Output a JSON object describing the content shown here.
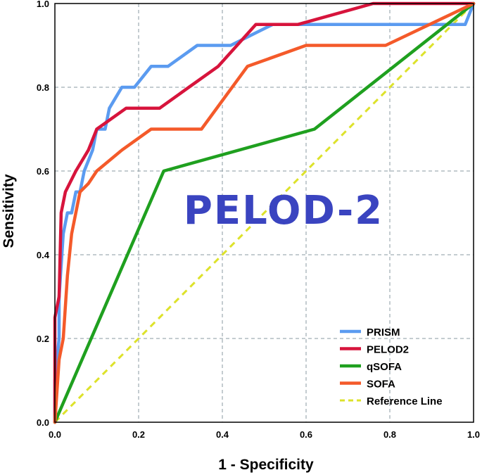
{
  "overlay_text": "PELOD-2",
  "chart_data": {
    "type": "line",
    "title": "",
    "xlabel": "1 - Specificity",
    "ylabel": "Sensitivity",
    "xlim": [
      0,
      1
    ],
    "ylim": [
      0,
      1
    ],
    "grid": true,
    "legend_position": "bottom-right",
    "x_ticks": [
      "0.0",
      "0.2",
      "0.4",
      "0.6",
      "0.8",
      "1.0"
    ],
    "y_ticks": [
      "0.0",
      "0.2",
      "0.4",
      "0.6",
      "0.8",
      "1.0"
    ],
    "series": [
      {
        "name": "PRISM",
        "color": "#5b9bf0",
        "dashed": false,
        "points": [
          [
            0,
            0
          ],
          [
            0,
            0.1
          ],
          [
            0.01,
            0.2
          ],
          [
            0.01,
            0.3
          ],
          [
            0.02,
            0.45
          ],
          [
            0.03,
            0.5
          ],
          [
            0.04,
            0.5
          ],
          [
            0.05,
            0.55
          ],
          [
            0.06,
            0.55
          ],
          [
            0.07,
            0.6
          ],
          [
            0.09,
            0.65
          ],
          [
            0.1,
            0.7
          ],
          [
            0.12,
            0.7
          ],
          [
            0.13,
            0.75
          ],
          [
            0.16,
            0.8
          ],
          [
            0.19,
            0.8
          ],
          [
            0.23,
            0.85
          ],
          [
            0.27,
            0.85
          ],
          [
            0.34,
            0.9
          ],
          [
            0.42,
            0.9
          ],
          [
            0.48,
            0.93
          ],
          [
            0.52,
            0.95
          ],
          [
            0.7,
            0.95
          ],
          [
            0.98,
            0.95
          ],
          [
            1.0,
            1.0
          ]
        ]
      },
      {
        "name": "PELOD2",
        "color": "#d7143c",
        "dashed": false,
        "points": [
          [
            0,
            0
          ],
          [
            0,
            0.25
          ],
          [
            0.01,
            0.3
          ],
          [
            0.015,
            0.5
          ],
          [
            0.025,
            0.55
          ],
          [
            0.05,
            0.6
          ],
          [
            0.08,
            0.65
          ],
          [
            0.1,
            0.7
          ],
          [
            0.17,
            0.75
          ],
          [
            0.25,
            0.75
          ],
          [
            0.32,
            0.8
          ],
          [
            0.39,
            0.85
          ],
          [
            0.48,
            0.95
          ],
          [
            0.58,
            0.95
          ],
          [
            0.76,
            1.0
          ],
          [
            1.0,
            1.0
          ]
        ]
      },
      {
        "name": "qSOFA",
        "color": "#1fa01f",
        "dashed": false,
        "points": [
          [
            0,
            0
          ],
          [
            0.26,
            0.6
          ],
          [
            0.62,
            0.7
          ],
          [
            1.0,
            1.0
          ]
        ]
      },
      {
        "name": "SOFA",
        "color": "#f45a2a",
        "dashed": false,
        "points": [
          [
            0,
            0
          ],
          [
            0.01,
            0.15
          ],
          [
            0.02,
            0.2
          ],
          [
            0.03,
            0.35
          ],
          [
            0.04,
            0.45
          ],
          [
            0.06,
            0.55
          ],
          [
            0.08,
            0.57
          ],
          [
            0.1,
            0.6
          ],
          [
            0.16,
            0.65
          ],
          [
            0.23,
            0.7
          ],
          [
            0.35,
            0.7
          ],
          [
            0.46,
            0.85
          ],
          [
            0.6,
            0.9
          ],
          [
            0.79,
            0.9
          ],
          [
            1.0,
            1.0
          ]
        ]
      },
      {
        "name": "Reference Line",
        "color": "#dde22a",
        "dashed": true,
        "points": [
          [
            0,
            0
          ],
          [
            1,
            1
          ]
        ]
      }
    ]
  }
}
